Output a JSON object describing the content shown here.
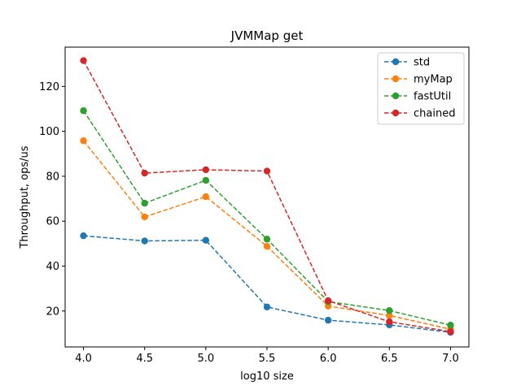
{
  "chart_data": {
    "type": "line",
    "title": "JVMMap get",
    "xlabel": "log10 size",
    "ylabel": "Throughput, ops/us",
    "x": [
      4.0,
      4.5,
      5.0,
      5.5,
      6.0,
      6.5,
      7.0
    ],
    "xticks": [
      4.0,
      4.5,
      5.0,
      5.5,
      6.0,
      6.5,
      7.0
    ],
    "xtick_labels": [
      "4.0",
      "4.5",
      "5.0",
      "5.5",
      "6.0",
      "6.5",
      "7.0"
    ],
    "yticks": [
      20,
      40,
      60,
      80,
      100,
      120
    ],
    "ytick_labels": [
      "20",
      "40",
      "60",
      "80",
      "100",
      "120"
    ],
    "xlim": [
      3.85,
      7.15
    ],
    "ylim": [
      4.0,
      137.5
    ],
    "grid": false,
    "legend_position": "upper-right",
    "line_style": "dashed",
    "marker": "circle",
    "series": [
      {
        "name": "std",
        "color": "#1f77b4",
        "values": [
          53.5,
          51.2,
          51.5,
          21.8,
          15.9,
          13.8,
          10.5
        ]
      },
      {
        "name": "myMap",
        "color": "#ff7f0e",
        "values": [
          95.8,
          61.9,
          70.9,
          48.8,
          22.2,
          18.0,
          11.9
        ]
      },
      {
        "name": "fastUtil",
        "color": "#2ca02c",
        "values": [
          109.2,
          68.0,
          78.2,
          52.0,
          24.2,
          20.2,
          13.7
        ]
      },
      {
        "name": "chained",
        "color": "#d62728",
        "values": [
          131.5,
          81.4,
          82.9,
          82.3,
          24.6,
          15.2,
          10.8
        ]
      }
    ]
  }
}
